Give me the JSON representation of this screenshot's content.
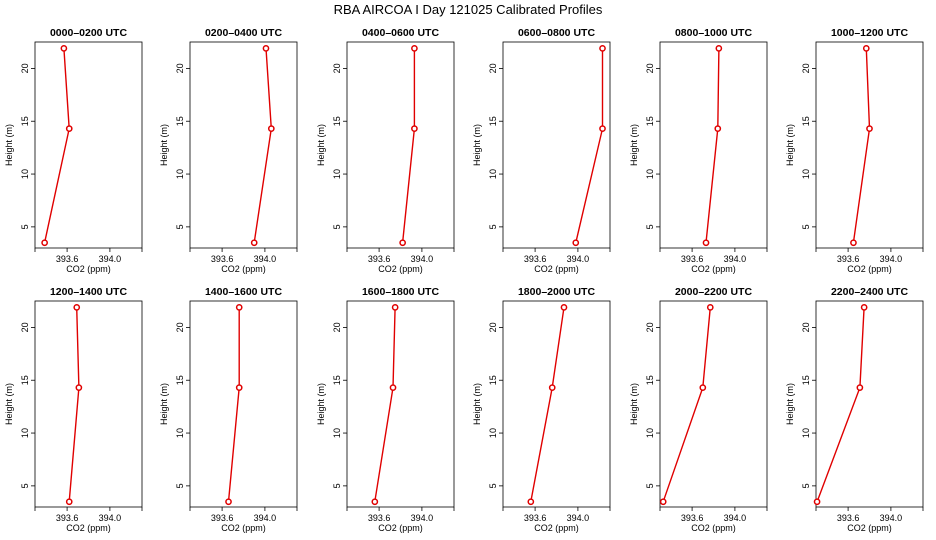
{
  "title": "RBA AIRCOA I  Day 121025  Calibrated Profiles",
  "chart_data": {
    "type": "line",
    "xlabel": "CO2 (ppm)",
    "ylabel": "Height (m)",
    "xlim": [
      393.3,
      394.3
    ],
    "ylim": [
      3,
      22.5
    ],
    "x_ticks": [
      393.6,
      394.0
    ],
    "x_tick_labels": [
      "393.6",
      "394.0"
    ],
    "y_ticks": [
      5,
      10,
      15,
      20
    ],
    "y_tick_labels": [
      "5",
      "10",
      "15",
      "20"
    ],
    "heights": [
      3.5,
      14.3,
      21.9
    ],
    "panels": [
      {
        "title": "0000–0200 UTC",
        "co2": [
          393.39,
          393.62,
          393.57
        ]
      },
      {
        "title": "0200–0400 UTC",
        "co2": [
          393.9,
          394.06,
          394.01
        ]
      },
      {
        "title": "0400–0600 UTC",
        "co2": [
          393.82,
          393.93,
          393.93
        ]
      },
      {
        "title": "0600–0800 UTC",
        "co2": [
          393.98,
          394.23,
          394.23
        ]
      },
      {
        "title": "0800–1000 UTC",
        "co2": [
          393.73,
          393.84,
          393.85
        ]
      },
      {
        "title": "1000–1200 UTC",
        "co2": [
          393.65,
          393.8,
          393.77
        ]
      },
      {
        "title": "1200–1400 UTC",
        "co2": [
          393.62,
          393.71,
          393.69
        ]
      },
      {
        "title": "1400–1600 UTC",
        "co2": [
          393.66,
          393.76,
          393.76
        ]
      },
      {
        "title": "1600–1800 UTC",
        "co2": [
          393.56,
          393.73,
          393.75
        ]
      },
      {
        "title": "1800–2000 UTC",
        "co2": [
          393.56,
          393.76,
          393.87
        ]
      },
      {
        "title": "2000–2200 UTC",
        "co2": [
          393.33,
          393.7,
          393.77
        ]
      },
      {
        "title": "2200–2400 UTC",
        "co2": [
          393.31,
          393.71,
          393.75
        ]
      }
    ]
  }
}
